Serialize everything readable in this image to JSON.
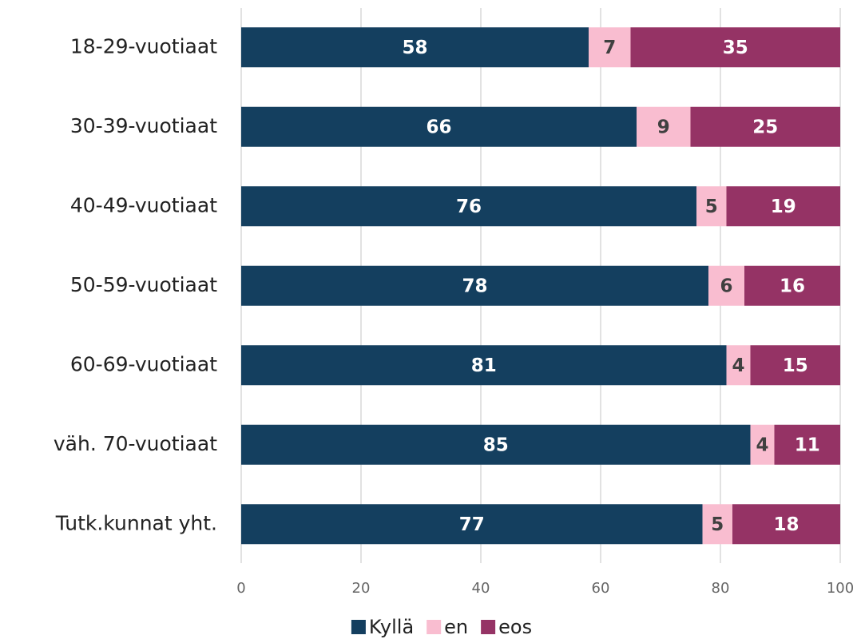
{
  "chart_data": {
    "type": "bar",
    "orientation": "horizontal",
    "stacked": true,
    "categories": [
      "18-29-vuotiaat",
      "30-39-vuotiaat",
      "40-49-vuotiaat",
      "50-59-vuotiaat",
      "60-69-vuotiaat",
      "väh. 70-vuotiaat",
      "Tutk.kunnat yht."
    ],
    "series": [
      {
        "name": "Kyllä",
        "color": "#143f5f",
        "label_color": "#ffffff",
        "values": [
          58,
          66,
          76,
          78,
          81,
          85,
          77
        ]
      },
      {
        "name": "en",
        "color": "#f9bdd0",
        "label_color": "#404040",
        "values": [
          7,
          9,
          5,
          6,
          4,
          4,
          5
        ]
      },
      {
        "name": "eos",
        "color": "#953365",
        "label_color": "#ffffff",
        "values": [
          35,
          25,
          19,
          16,
          15,
          11,
          18
        ]
      }
    ],
    "xlim": [
      0,
      100
    ],
    "xticks": [
      0,
      20,
      40,
      60,
      80,
      100
    ],
    "grid": true,
    "legend": "bottom"
  }
}
